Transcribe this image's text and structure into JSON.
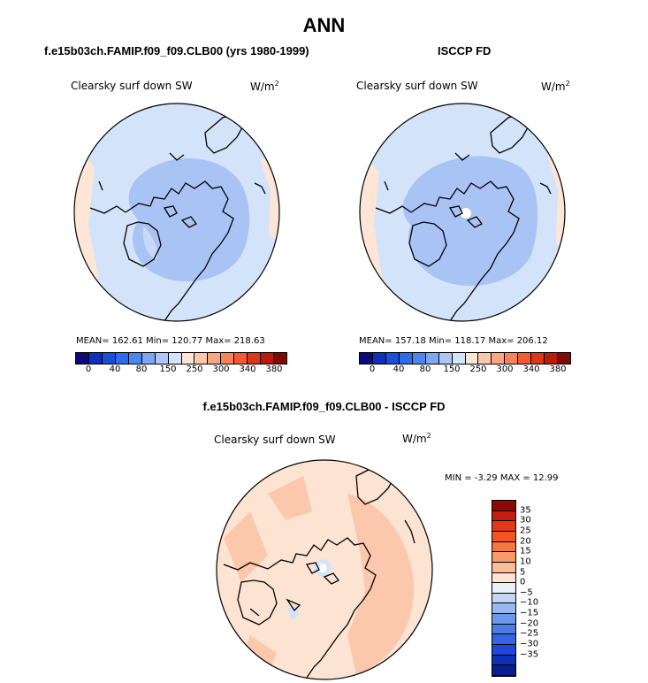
{
  "title": "ANN",
  "panels": [
    {
      "case": "f.e15b03ch.FAMIP.f09_f09.CLB00 (yrs 1980-1999)",
      "variable": "Clearsky surf down SW",
      "units_base": "W/m",
      "units_exp": "2",
      "stats": "MEAN= 162.61   Min= 120.77   Max= 218.63"
    },
    {
      "case": "ISCCP FD",
      "variable": "Clearsky surf down SW",
      "units_base": "W/m",
      "units_exp": "2",
      "stats": "MEAN= 157.18   Min= 118.17   Max= 206.12"
    }
  ],
  "colorbar_abs": {
    "colors": [
      "#0a0a78",
      "#1030b8",
      "#1a4fd8",
      "#2d6de8",
      "#4a88f0",
      "#7da6f3",
      "#adc6f6",
      "#d3e4fa",
      "#fde6d8",
      "#fbc8ad",
      "#f9a782",
      "#f5845a",
      "#ef5c32",
      "#d8391a",
      "#b81d0c",
      "#7f0a05"
    ],
    "ticks": [
      "0",
      "40",
      "80",
      "150",
      "250",
      "300",
      "340",
      "380"
    ]
  },
  "diff": {
    "title": "f.e15b03ch.FAMIP.f09_f09.CLB00 - ISCCP FD",
    "variable": "Clearsky surf down SW",
    "units_base": "W/m",
    "units_exp": "2",
    "stats": "MIN =   -3.29  MAX =   12.99",
    "colorbar": {
      "colors": [
        "#8b0a05",
        "#c21d0e",
        "#e03b17",
        "#f25522",
        "#f7783f",
        "#f99a68",
        "#fbbd98",
        "#fde3d2",
        "#ecf1f8",
        "#c5d6f4",
        "#9ab8ef",
        "#6f97ea",
        "#4d7ae6",
        "#3563e6",
        "#2048d8",
        "#0f30b8",
        "#071f8c"
      ],
      "ticks": [
        "35",
        "30",
        "25",
        "20",
        "15",
        "10",
        "5",
        "0",
        "−5",
        "−10",
        "−15",
        "−20",
        "−25",
        "−30",
        "−35"
      ]
    }
  }
}
